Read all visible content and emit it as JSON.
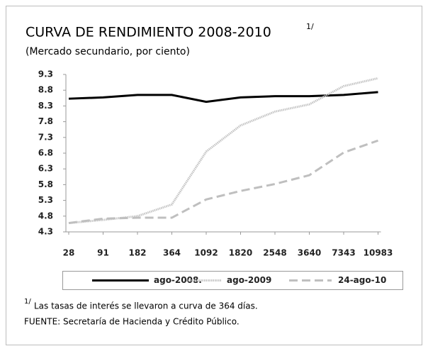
{
  "chart_data": {
    "type": "line",
    "title": "CURVA DE RENDIMIENTO 2008-2010",
    "title_note": "1/",
    "subtitle": "(Mercado secundario, por ciento)",
    "categories": [
      "28",
      "91",
      "182",
      "364",
      "1092",
      "1820",
      "2548",
      "3640",
      "7343",
      "10983"
    ],
    "series": [
      {
        "name": "ago-2008.",
        "color": "#000000",
        "dash": "solid",
        "width": 3,
        "values": [
          8.53,
          8.57,
          8.65,
          8.65,
          8.43,
          8.57,
          8.61,
          8.61,
          8.65,
          8.74
        ]
      },
      {
        "name": "ago-2009",
        "color": "#c4c4c4",
        "dash": "dotted",
        "width": 3,
        "values": [
          4.58,
          4.68,
          4.8,
          5.17,
          6.85,
          7.68,
          8.12,
          8.35,
          8.93,
          9.18
        ]
      },
      {
        "name": "24-ago-10",
        "color": "#bfbfbf",
        "dash": "dashed",
        "width": 3,
        "values": [
          4.58,
          4.72,
          4.75,
          4.75,
          5.33,
          5.6,
          5.82,
          6.1,
          6.82,
          7.2
        ]
      }
    ],
    "ylim": [
      4.3,
      9.3
    ],
    "yticks": [
      4.3,
      4.8,
      5.3,
      5.8,
      6.3,
      6.8,
      7.3,
      7.8,
      8.3,
      8.8,
      9.3
    ],
    "legend": "bottom",
    "note_marker": "1/",
    "note": "Las tasas de interés se llevaron a curva de 364 días.",
    "source": "FUENTE: Secretaría de Hacienda y Crédito Público."
  }
}
